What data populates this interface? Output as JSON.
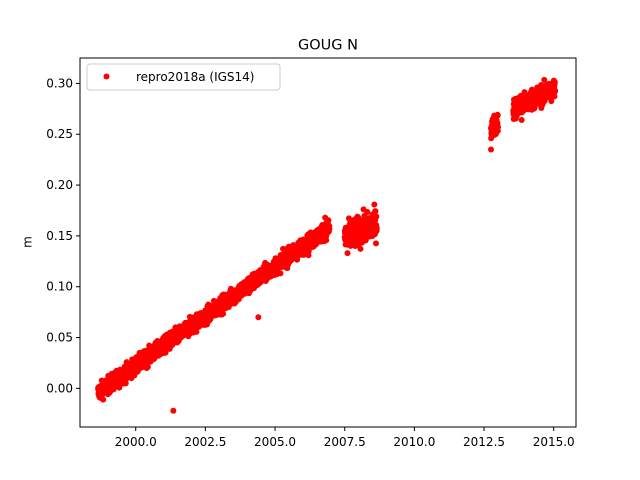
{
  "chart_data": {
    "type": "scatter",
    "title": "GOUG N",
    "xlabel": "",
    "ylabel": "m",
    "xlim": [
      1998.0,
      2015.8
    ],
    "ylim": [
      -0.038,
      0.325
    ],
    "xticks": [
      {
        "value": 2000.0,
        "label": "2000.0"
      },
      {
        "value": 2002.5,
        "label": "2002.5"
      },
      {
        "value": 2005.0,
        "label": "2005.0"
      },
      {
        "value": 2007.5,
        "label": "2007.5"
      },
      {
        "value": 2010.0,
        "label": "2010.0"
      },
      {
        "value": 2012.5,
        "label": "2012.5"
      },
      {
        "value": 2015.0,
        "label": "2015.0"
      }
    ],
    "yticks": [
      {
        "value": 0.0,
        "label": "0.00"
      },
      {
        "value": 0.05,
        "label": "0.05"
      },
      {
        "value": 0.1,
        "label": "0.10"
      },
      {
        "value": 0.15,
        "label": "0.15"
      },
      {
        "value": 0.2,
        "label": "0.20"
      },
      {
        "value": 0.25,
        "label": "0.25"
      },
      {
        "value": 0.3,
        "label": "0.30"
      }
    ],
    "grid": false,
    "legend_position": "upper-left",
    "series": [
      {
        "name": "repro2018a (IGS14)",
        "color": "#ff0000",
        "marker": "circle",
        "segments": [
          {
            "x_start": 1998.65,
            "x_end": 2006.95,
            "y_start": -0.004,
            "y_end": 0.158,
            "scatter": 0.004
          },
          {
            "x_start": 2007.5,
            "x_end": 2008.65,
            "y_start": 0.148,
            "y_end": 0.162,
            "scatter": 0.007
          },
          {
            "x_start": 2012.75,
            "x_end": 2013.0,
            "y_start": 0.255,
            "y_end": 0.262,
            "scatter": 0.005
          },
          {
            "x_start": 2013.55,
            "x_end": 2015.05,
            "y_start": 0.275,
            "y_end": 0.295,
            "scatter": 0.005
          }
        ],
        "outliers": [
          {
            "x": 2001.35,
            "y": -0.022
          },
          {
            "x": 2004.4,
            "y": 0.07
          },
          {
            "x": 2012.75,
            "y": 0.235
          },
          {
            "x": 2007.6,
            "y": 0.133
          },
          {
            "x": 2013.85,
            "y": 0.264
          },
          {
            "x": 2006.8,
            "y": 0.168
          },
          {
            "x": 2006.2,
            "y": 0.131
          }
        ]
      }
    ]
  }
}
